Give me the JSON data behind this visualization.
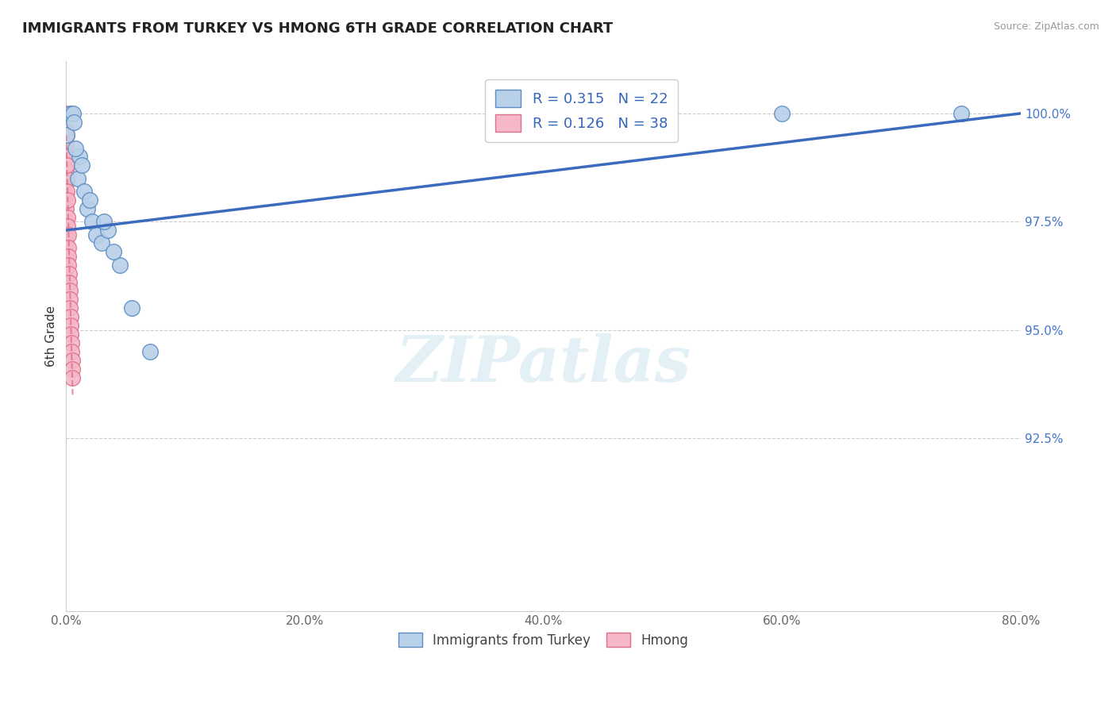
{
  "title": "IMMIGRANTS FROM TURKEY VS HMONG 6TH GRADE CORRELATION CHART",
  "source": "Source: ZipAtlas.com",
  "xlabel_turkey": "Immigrants from Turkey",
  "xlabel_hmong": "Hmong",
  "ylabel": "6th Grade",
  "xlim": [
    0.0,
    80.0
  ],
  "ylim": [
    88.5,
    101.2
  ],
  "yticks": [
    92.5,
    95.0,
    97.5,
    100.0
  ],
  "ytick_labels": [
    "92.5%",
    "95.0%",
    "97.5%",
    "100.0%"
  ],
  "xticks": [
    0.0,
    20.0,
    40.0,
    60.0,
    80.0
  ],
  "xtick_labels": [
    "0.0%",
    "20.0%",
    "40.0%",
    "60.0%",
    "80.0%"
  ],
  "turkey_R": 0.315,
  "turkey_N": 22,
  "hmong_R": 0.126,
  "hmong_N": 38,
  "turkey_color": "#b8d0e8",
  "turkey_edge_color": "#5b8ec4",
  "hmong_color": "#f4b8c8",
  "hmong_edge_color": "#e0708a",
  "trend_turkey_color": "#3a6bbf",
  "trend_hmong_color": "#e8a0b0",
  "watermark_text": "ZIPatlas",
  "turkey_x": [
    0.05,
    0.4,
    0.55,
    0.65,
    1.0,
    1.1,
    1.5,
    1.8,
    2.2,
    2.5,
    3.0,
    3.5,
    4.5,
    5.5,
    60.0,
    75.0
  ],
  "turkey_y": [
    99.5,
    100.0,
    100.0,
    99.8,
    98.5,
    99.0,
    98.2,
    97.8,
    97.5,
    97.2,
    97.0,
    97.3,
    96.5,
    95.5,
    100.0,
    100.0
  ],
  "turkey_x2": [
    0.8,
    1.3,
    2.0,
    3.2,
    4.0,
    7.0
  ],
  "turkey_y2": [
    99.2,
    98.8,
    98.0,
    97.5,
    96.8,
    94.5
  ],
  "hmong_x": [
    0.0,
    0.0,
    0.0,
    0.0,
    0.0,
    0.0,
    0.0,
    0.0,
    0.0,
    0.0,
    0.0,
    0.0,
    0.0,
    0.05,
    0.05,
    0.05,
    0.08,
    0.08,
    0.1,
    0.1,
    0.12,
    0.15,
    0.15,
    0.18,
    0.2,
    0.22,
    0.25,
    0.28,
    0.3,
    0.32,
    0.35,
    0.38,
    0.4,
    0.42,
    0.45,
    0.48,
    0.5,
    0.52
  ],
  "hmong_y": [
    100.0,
    99.6,
    99.3,
    99.0,
    98.7,
    98.4,
    98.1,
    97.8,
    97.5,
    97.2,
    97.0,
    96.7,
    96.4,
    99.5,
    99.0,
    98.5,
    98.8,
    98.2,
    98.0,
    97.6,
    97.4,
    97.2,
    96.9,
    96.7,
    96.5,
    96.3,
    96.1,
    95.9,
    95.7,
    95.5,
    95.3,
    95.1,
    94.9,
    94.7,
    94.5,
    94.3,
    94.1,
    93.9
  ],
  "trend_turkey_x0": 0.0,
  "trend_turkey_y0": 97.3,
  "trend_turkey_x1": 80.0,
  "trend_turkey_y1": 100.0,
  "trend_hmong_x0": 0.0,
  "trend_hmong_y0": 99.5,
  "trend_hmong_x1": 0.55,
  "trend_hmong_y1": 93.5
}
